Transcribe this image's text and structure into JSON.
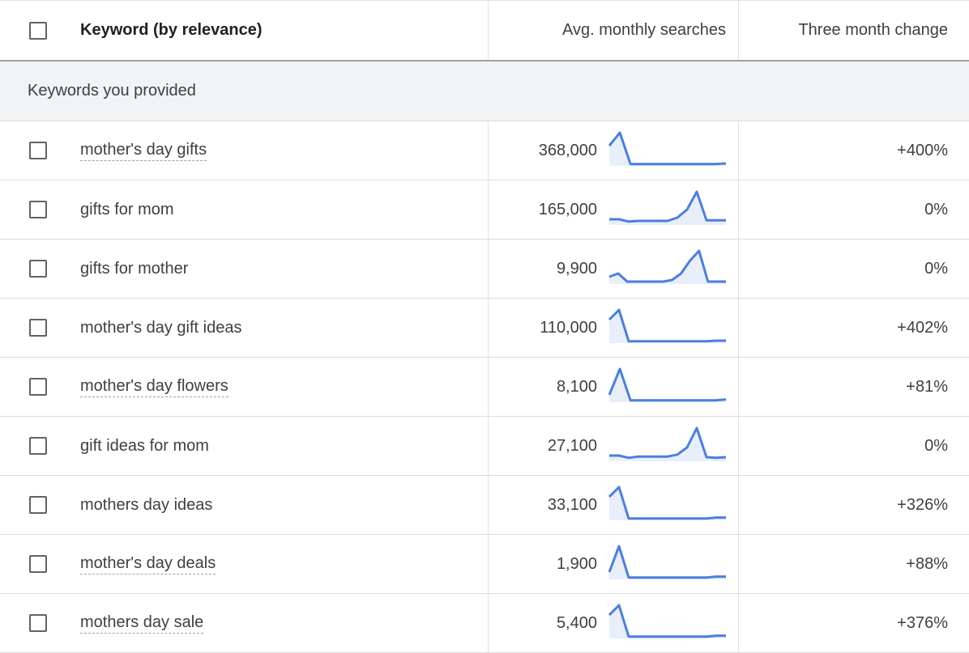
{
  "header": {
    "keyword_col": "Keyword (by relevance)",
    "avg_col": "Avg. monthly searches",
    "change_col": "Three month change"
  },
  "group": {
    "label": "Keywords you provided"
  },
  "colors": {
    "spark_line": "#4a7fe0",
    "spark_fill": "#e8effb"
  },
  "rows": [
    {
      "keyword": "mother's day gifts",
      "dotted": true,
      "avg": "368,000",
      "change": "+400%",
      "trend": [
        60,
        100,
        3,
        3,
        3,
        3,
        3,
        3,
        3,
        3,
        3,
        5
      ]
    },
    {
      "keyword": "gifts for mom",
      "dotted": false,
      "avg": "165,000",
      "change": "0%",
      "trend": [
        15,
        15,
        8,
        10,
        10,
        10,
        10,
        20,
        45,
        100,
        12,
        12,
        12
      ]
    },
    {
      "keyword": "gifts for mother",
      "dotted": false,
      "avg": "9,900",
      "change": "0%",
      "trend": [
        20,
        30,
        5,
        5,
        5,
        5,
        5,
        10,
        30,
        70,
        100,
        5,
        5,
        5
      ]
    },
    {
      "keyword": "mother's day gift ideas",
      "dotted": false,
      "avg": "110,000",
      "change": "+402%",
      "trend": [
        70,
        100,
        3,
        3,
        3,
        3,
        3,
        3,
        3,
        3,
        3,
        5,
        5
      ]
    },
    {
      "keyword": "mother's day flowers",
      "dotted": true,
      "avg": "8,100",
      "change": "+81%",
      "trend": [
        20,
        100,
        3,
        3,
        3,
        3,
        3,
        3,
        3,
        3,
        3,
        6
      ]
    },
    {
      "keyword": "gift ideas for mom",
      "dotted": false,
      "avg": "27,100",
      "change": "0%",
      "trend": [
        15,
        15,
        8,
        12,
        12,
        12,
        12,
        18,
        40,
        100,
        10,
        8,
        10
      ]
    },
    {
      "keyword": "mothers day ideas",
      "dotted": false,
      "avg": "33,100",
      "change": "+326%",
      "trend": [
        70,
        100,
        3,
        3,
        3,
        3,
        3,
        3,
        3,
        3,
        3,
        6,
        6
      ]
    },
    {
      "keyword": "mother's day deals",
      "dotted": true,
      "avg": "1,900",
      "change": "+88%",
      "trend": [
        20,
        100,
        3,
        3,
        3,
        3,
        3,
        3,
        3,
        3,
        3,
        6,
        6
      ]
    },
    {
      "keyword": "mothers day sale",
      "dotted": true,
      "avg": "5,400",
      "change": "+376%",
      "trend": [
        70,
        100,
        3,
        3,
        3,
        3,
        3,
        3,
        3,
        3,
        3,
        6,
        6
      ]
    }
  ]
}
